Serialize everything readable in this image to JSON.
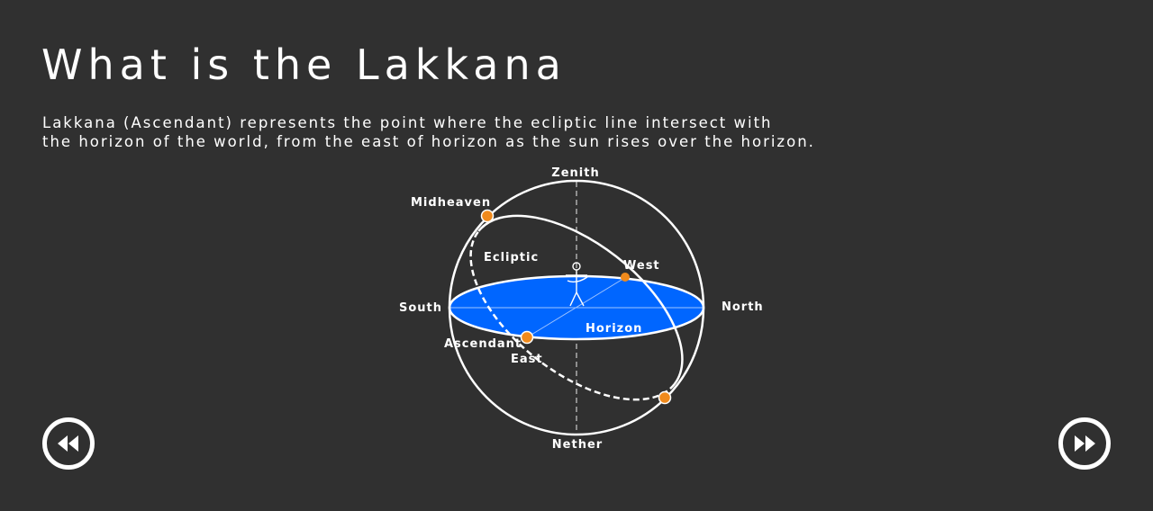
{
  "page": {
    "title": "What is the Lakkana",
    "description_lines": [
      "Lakkana (Ascendant) represents the point where the ecliptic line intersect with",
      "the horizon of the world, from the east of horizon as the sun rises over the horizon."
    ]
  },
  "diagram": {
    "labels": {
      "zenith": "Zenith",
      "nether": "Nether",
      "south": "South",
      "north": "North",
      "midheaven": "Midheaven",
      "ecliptic": "Ecliptic",
      "west": "West",
      "horizon": "Horizon",
      "ascendant": "Ascendant",
      "east": "East"
    },
    "colors": {
      "horizon_fill": "#0066ff",
      "point_fill": "#f08a1c",
      "line": "#ffffff",
      "background": "#303030"
    }
  },
  "navigation": {
    "prev_icon": "rewind-icon",
    "next_icon": "fast-forward-icon"
  }
}
